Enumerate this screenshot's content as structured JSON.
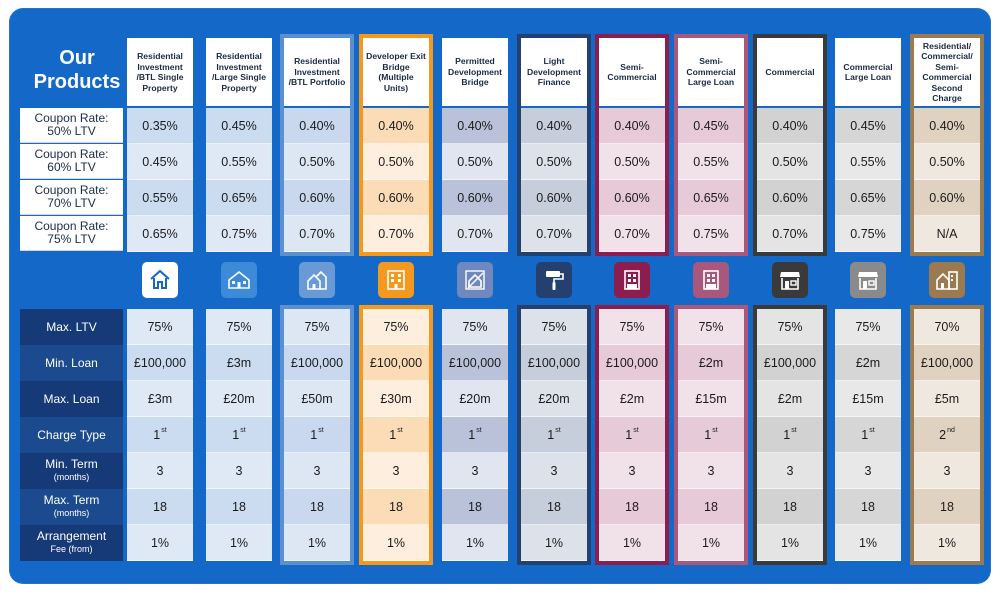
{
  "title_line1": "Our",
  "title_line2": "Products",
  "coupon_labels": [
    {
      "line1": "Coupon Rate:",
      "line2": "50% LTV"
    },
    {
      "line1": "Coupon Rate:",
      "line2": "60% LTV"
    },
    {
      "line1": "Coupon Rate:",
      "line2": "70% LTV"
    },
    {
      "line1": "Coupon Rate:",
      "line2": "75% LTV"
    }
  ],
  "detail_labels": [
    {
      "main": "Max. LTV",
      "sub": ""
    },
    {
      "main": "Min. Loan",
      "sub": ""
    },
    {
      "main": "Max. Loan",
      "sub": ""
    },
    {
      "main": "Charge Type",
      "sub": ""
    },
    {
      "main": "Min. Term",
      "sub": "(months)"
    },
    {
      "main": "Max. Term",
      "sub": "(months)"
    },
    {
      "main": "Arrangement",
      "sub": "Fee (from)"
    }
  ],
  "products": [
    {
      "name": "Residential Investment /BTL Single Property",
      "icon": "house-outline-icon",
      "color": "#1468c8",
      "frame": "none",
      "light": "#dfe9f6",
      "light2": "#ccdcf0",
      "iconbg": "#ffffff",
      "coupons": [
        "0.35%",
        "0.45%",
        "0.55%",
        "0.65%"
      ],
      "max_ltv": "75%",
      "min_loan": "£100,000",
      "max_loan": "£3m",
      "charge": "1",
      "charge_suffix": "st",
      "min_term": "3",
      "max_term": "18",
      "fee": "1%"
    },
    {
      "name": "Residential Investment /Large Single Property",
      "icon": "large-house-icon",
      "color": "#1468c8",
      "frame": "none",
      "light": "#dfe9f6",
      "light2": "#ccdcf0",
      "iconbg": "#3c8ad8",
      "coupons": [
        "0.45%",
        "0.55%",
        "0.65%",
        "0.75%"
      ],
      "max_ltv": "75%",
      "min_loan": "£3m",
      "max_loan": "£20m",
      "charge": "1",
      "charge_suffix": "st",
      "min_term": "3",
      "max_term": "18",
      "fee": "1%"
    },
    {
      "name": "Residential Investment /BTL Portfolio",
      "icon": "houses-portfolio-icon",
      "color": "#5a8fd0",
      "frame": "#5a8fd0",
      "light": "#dde7f4",
      "light2": "#c9d8ee",
      "iconbg": "#6a9ad6",
      "coupons": [
        "0.40%",
        "0.50%",
        "0.60%",
        "0.70%"
      ],
      "max_ltv": "75%",
      "min_loan": "£100,000",
      "max_loan": "£50m",
      "charge": "1",
      "charge_suffix": "st",
      "min_term": "3",
      "max_term": "18",
      "fee": "1%"
    },
    {
      "name": "Developer Exit Bridge (Multiple Units)",
      "icon": "apartment-block-icon",
      "color": "#f39a1e",
      "frame": "#f39a1e",
      "light": "#fdeede",
      "light2": "#fbdcb7",
      "iconbg": "#f39a1e",
      "coupons": [
        "0.40%",
        "0.50%",
        "0.60%",
        "0.70%"
      ],
      "max_ltv": "75%",
      "min_loan": "£100,000",
      "max_loan": "£30m",
      "charge": "1",
      "charge_suffix": "st",
      "min_term": "3",
      "max_term": "18",
      "fee": "1%"
    },
    {
      "name": "Permitted Development Bridge",
      "icon": "blueprint-house-icon",
      "color": "#8c9ec8",
      "frame": "none",
      "light": "#e1e5f0",
      "light2": "#b9c2d8",
      "iconbg": "#6f88bd",
      "coupons": [
        "0.40%",
        "0.50%",
        "0.60%",
        "0.70%"
      ],
      "max_ltv": "75%",
      "min_loan": "£100,000",
      "max_loan": "£20m",
      "charge": "1",
      "charge_suffix": "st",
      "min_term": "3",
      "max_term": "18",
      "fee": "1%"
    },
    {
      "name": "Light Development Finance",
      "icon": "paint-roller-icon",
      "color": "#24406e",
      "frame": "#24406e",
      "light": "#dce1ea",
      "light2": "#c6cddb",
      "iconbg": "#24406e",
      "coupons": [
        "0.40%",
        "0.50%",
        "0.60%",
        "0.70%"
      ],
      "max_ltv": "75%",
      "min_loan": "£100,000",
      "max_loan": "£20m",
      "charge": "1",
      "charge_suffix": "st",
      "min_term": "3",
      "max_term": "18",
      "fee": "1%"
    },
    {
      "name": "Semi-Commercial",
      "icon": "shopfront-flats-icon",
      "color": "#8a1e4e",
      "frame": "#8a1e4e",
      "light": "#f1e1e8",
      "light2": "#e6cad7",
      "iconbg": "#8a1e4e",
      "coupons": [
        "0.40%",
        "0.50%",
        "0.60%",
        "0.70%"
      ],
      "max_ltv": "75%",
      "min_loan": "£100,000",
      "max_loan": "£2m",
      "charge": "1",
      "charge_suffix": "st",
      "min_term": "3",
      "max_term": "18",
      "fee": "1%"
    },
    {
      "name": "Semi-Commercial Large Loan",
      "icon": "shopfront-flats-icon",
      "color": "#a8587c",
      "frame": "#a8587c",
      "light": "#f1e1e8",
      "light2": "#e6cad7",
      "iconbg": "#a8587c",
      "coupons": [
        "0.45%",
        "0.55%",
        "0.65%",
        "0.75%"
      ],
      "max_ltv": "75%",
      "min_loan": "£2m",
      "max_loan": "£15m",
      "charge": "1",
      "charge_suffix": "st",
      "min_term": "3",
      "max_term": "18",
      "fee": "1%"
    },
    {
      "name": "Commercial",
      "icon": "shop-awning-icon",
      "color": "#3a3a3a",
      "frame": "#3a3a3a",
      "light": "#e4e4e4",
      "light2": "#d2d2d2",
      "iconbg": "#3a3a3a",
      "coupons": [
        "0.40%",
        "0.50%",
        "0.60%",
        "0.70%"
      ],
      "max_ltv": "75%",
      "min_loan": "£100,000",
      "max_loan": "£2m",
      "charge": "1",
      "charge_suffix": "st",
      "min_term": "3",
      "max_term": "18",
      "fee": "1%"
    },
    {
      "name": "Commercial Large Loan",
      "icon": "shop-awning-icon",
      "color": "#8a8a8a",
      "frame": "none",
      "light": "#e8e8e8",
      "light2": "#d6d6d6",
      "iconbg": "#8a8a8a",
      "coupons": [
        "0.45%",
        "0.55%",
        "0.65%",
        "0.75%"
      ],
      "max_ltv": "75%",
      "min_loan": "£2m",
      "max_loan": "£15m",
      "charge": "1",
      "charge_suffix": "st",
      "min_term": "3",
      "max_term": "18",
      "fee": "1%"
    },
    {
      "name": "Residential/ Commercial/ Semi-Commercial Second Charge",
      "icon": "mixed-property-icon",
      "color": "#9a7a4e",
      "frame": "#9a7a4e",
      "light": "#efe8de",
      "light2": "#dfd2c0",
      "iconbg": "#9a7a4e",
      "coupons": [
        "0.40%",
        "0.50%",
        "0.60%",
        "N/A"
      ],
      "max_ltv": "70%",
      "min_loan": "£100,000",
      "max_loan": "£5m",
      "charge": "2",
      "charge_suffix": "nd",
      "min_term": "3",
      "max_term": "18",
      "fee": "1%"
    }
  ]
}
